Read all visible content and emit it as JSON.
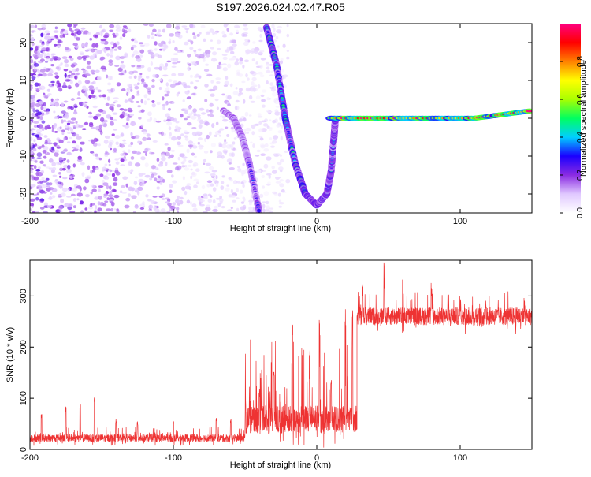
{
  "title": "S197.2026.024.02.47.R05",
  "chart_data": [
    {
      "type": "heatmap",
      "name": "spectrogram",
      "xlabel": "Height of straight line (km)",
      "ylabel": "Frequency (Hz)",
      "xlim": [
        -200,
        150
      ],
      "ylim": [
        -25,
        25
      ],
      "xticks": [
        -200,
        -100,
        0,
        100
      ],
      "yticks": [
        -20,
        -10,
        0,
        10,
        20
      ],
      "colorbar": {
        "label": "Normalized spectral amplitude",
        "range": [
          0,
          1
        ],
        "ticks": [
          0.0,
          0.2,
          0.4,
          0.6,
          0.8
        ],
        "tick_labels": [
          "0.0",
          "0.2",
          "0.4",
          "0.6",
          "0.8"
        ],
        "colors": [
          "#ffffff",
          "#e0c8ff",
          "#8a2be2",
          "#1a00ff",
          "#00cfff",
          "#00ff60",
          "#aaff00",
          "#ffff00",
          "#ff8000",
          "#ff0000",
          "#ff0080"
        ]
      },
      "features": [
        {
          "name": "noise",
          "x_range": [
            -200,
            -20
          ],
          "f_range": [
            -25,
            25
          ],
          "amplitude": 0.1
        },
        {
          "name": "descending-track",
          "points": [
            [
              -35,
              24
            ],
            [
              -28,
              14
            ],
            [
              -22,
              0
            ],
            [
              -15,
              -12
            ],
            [
              -8,
              -20
            ],
            [
              0,
              -23
            ]
          ],
          "amplitude": 0.45
        },
        {
          "name": "rising-track",
          "points": [
            [
              0,
              -23
            ],
            [
              7,
              -20
            ],
            [
              10,
              -14
            ],
            [
              12,
              -5
            ],
            [
              13,
              0
            ]
          ],
          "amplitude": 0.4
        },
        {
          "name": "left-track",
          "points": [
            [
              -65,
              2
            ],
            [
              -58,
              0
            ],
            [
              -52,
              -5
            ],
            [
              -47,
              -12
            ],
            [
              -40,
              -25
            ]
          ],
          "amplitude": 0.3
        },
        {
          "name": "zero-frequency-line",
          "points": [
            [
              10,
              0
            ],
            [
              60,
              0
            ],
            [
              110,
              0
            ],
            [
              150,
              2
            ]
          ],
          "amplitude": 0.95
        }
      ]
    },
    {
      "type": "line",
      "name": "snr",
      "xlabel": "Height of straight line (km)",
      "ylabel": "SNR (10 * v/v)",
      "xlim": [
        -200,
        150
      ],
      "ylim": [
        0,
        370
      ],
      "xticks": [
        -200,
        -100,
        0,
        100
      ],
      "yticks": [
        0,
        100,
        200,
        300
      ],
      "color": "#ee3333",
      "segments": [
        {
          "x_range": [
            -200,
            -50
          ],
          "baseline": 20,
          "noise": 15,
          "spikes": [
            [
              -192,
              70
            ],
            [
              -175,
              85
            ],
            [
              -165,
              90
            ],
            [
              -155,
              105
            ],
            [
              -140,
              60
            ],
            [
              -125,
              55
            ],
            [
              -100,
              55
            ],
            [
              -70,
              65
            ],
            [
              -60,
              60
            ]
          ]
        },
        {
          "x_range": [
            -50,
            28
          ],
          "baseline": 50,
          "noise": 55,
          "spikes": [
            [
              -40,
              110
            ],
            [
              -30,
              165
            ],
            [
              -17,
              250
            ],
            [
              -5,
              200
            ],
            [
              2,
              260
            ],
            [
              10,
              150
            ],
            [
              20,
              280
            ],
            [
              25,
              300
            ]
          ]
        },
        {
          "x_range": [
            28,
            150
          ],
          "baseline": 255,
          "noise": 35,
          "spikes": [
            [
              32,
              340
            ],
            [
              47,
              370
            ],
            [
              60,
              335
            ],
            [
              80,
              330
            ],
            [
              100,
              300
            ],
            [
              118,
              315
            ],
            [
              145,
              300
            ]
          ]
        }
      ]
    }
  ]
}
